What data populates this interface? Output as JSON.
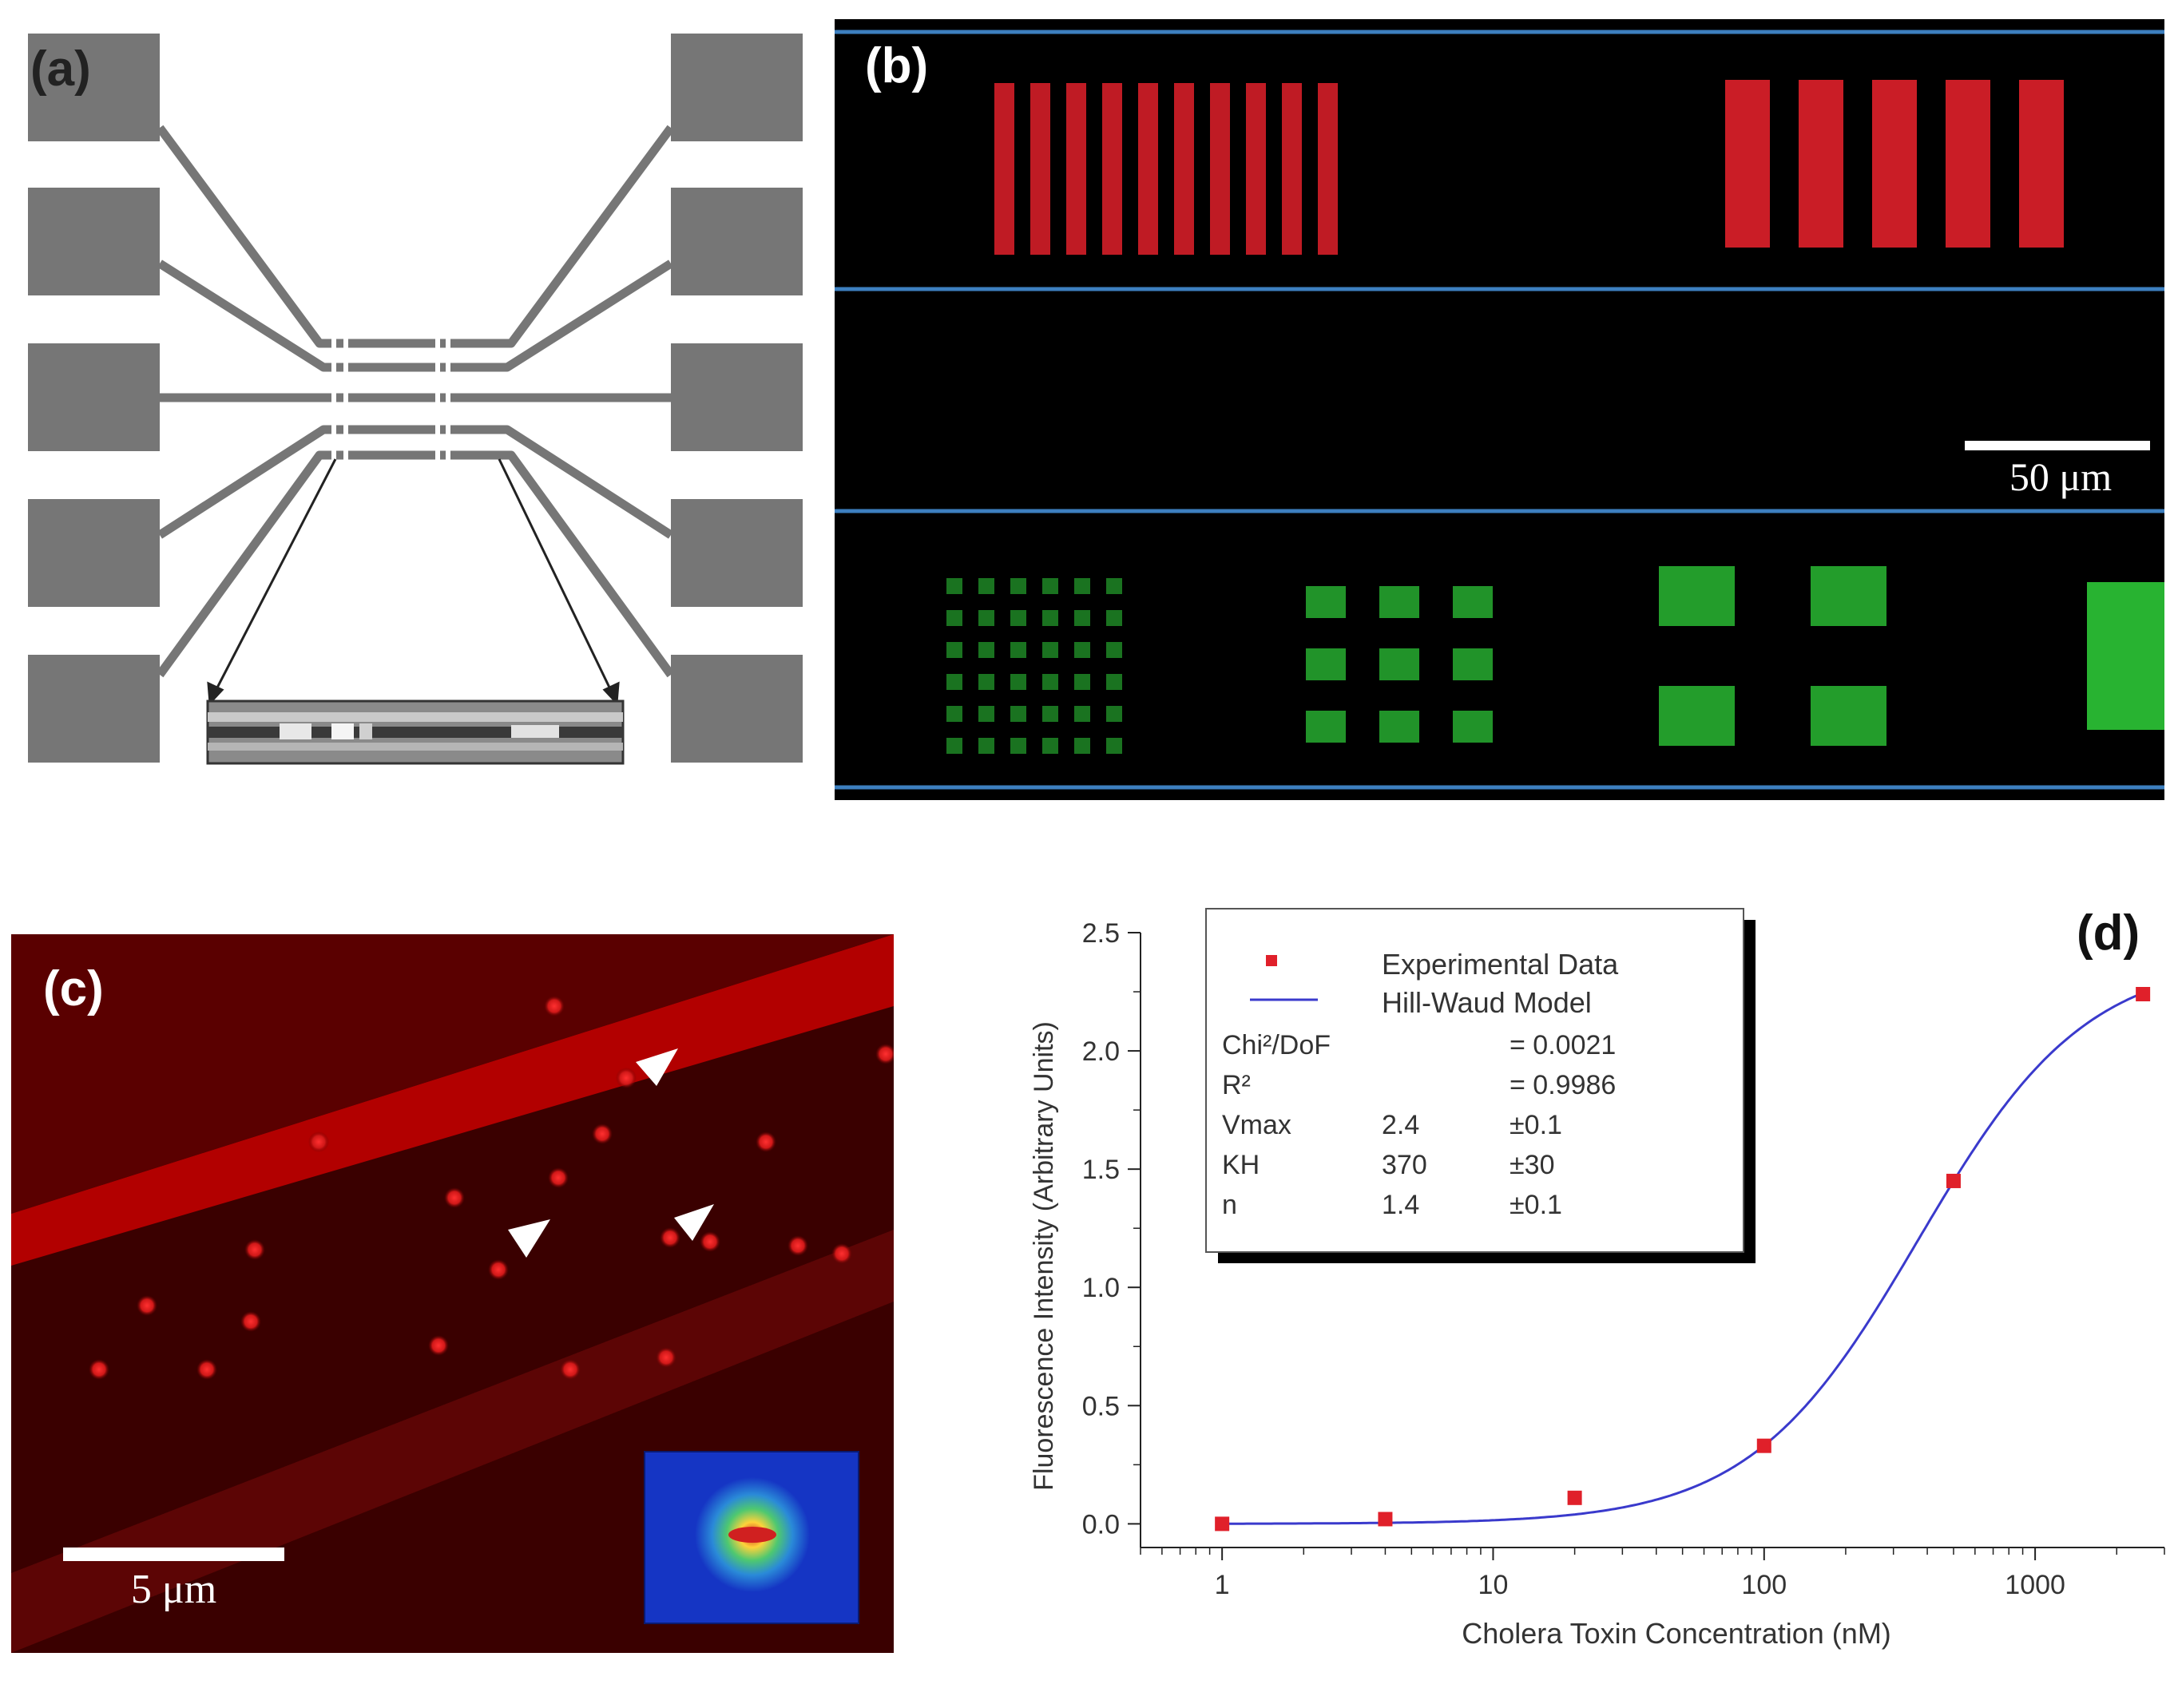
{
  "panels": {
    "a": {
      "label": "(a)"
    },
    "b": {
      "label": "(b)",
      "scale_bar": "50 μm"
    },
    "c": {
      "label": "(c)",
      "scale_bar": "5 μm"
    },
    "d": {
      "label": "(d)"
    }
  },
  "chart_data": {
    "type": "scatter",
    "xscale": "log",
    "xlabel": "Cholera Toxin Concentration (nM)",
    "ylabel": "Fluorescence Intensity (Arbitrary Units)",
    "xlim": [
      0.5,
      3000
    ],
    "ylim": [
      -0.1,
      2.5
    ],
    "x_ticks": [
      1,
      10,
      100,
      1000
    ],
    "x_tick_labels": [
      "1",
      "10",
      "100",
      "1000"
    ],
    "y_ticks": [
      0.0,
      0.5,
      1.0,
      1.5,
      2.0,
      2.5
    ],
    "y_tick_labels": [
      "0.0",
      "0.5",
      "1.0",
      "1.5",
      "2.0",
      "2.5"
    ],
    "series": [
      {
        "name": "Experimental Data",
        "marker": "square",
        "color": "#e0202a",
        "x": [
          1,
          4,
          20,
          100,
          500,
          2500
        ],
        "y": [
          0.0,
          0.02,
          0.11,
          0.33,
          1.45,
          2.24
        ]
      },
      {
        "name": "Hill-Waud Model",
        "type": "line",
        "color": "#3a3acc",
        "model": {
          "vmax": 2.4,
          "kh": 370,
          "n": 1.4
        }
      }
    ],
    "legend_position": "top-left",
    "stats": [
      {
        "name": "Chi²/DoF",
        "value": "= 0.0021",
        "error": ""
      },
      {
        "name": "R²",
        "value": "= 0.9986",
        "error": ""
      },
      {
        "name": "Vmax",
        "value": "2.4",
        "error": "±0.1"
      },
      {
        "name": "KH",
        "value": "370",
        "error": "±30"
      },
      {
        "name": "n",
        "value": "1.4",
        "error": "±0.1"
      }
    ],
    "grid": false
  },
  "colors": {
    "electrode_gray": "#767676",
    "fluor_red": "#e0202a",
    "fluor_green": "#2fd23a",
    "divider_blue": "#3d7fbf"
  }
}
